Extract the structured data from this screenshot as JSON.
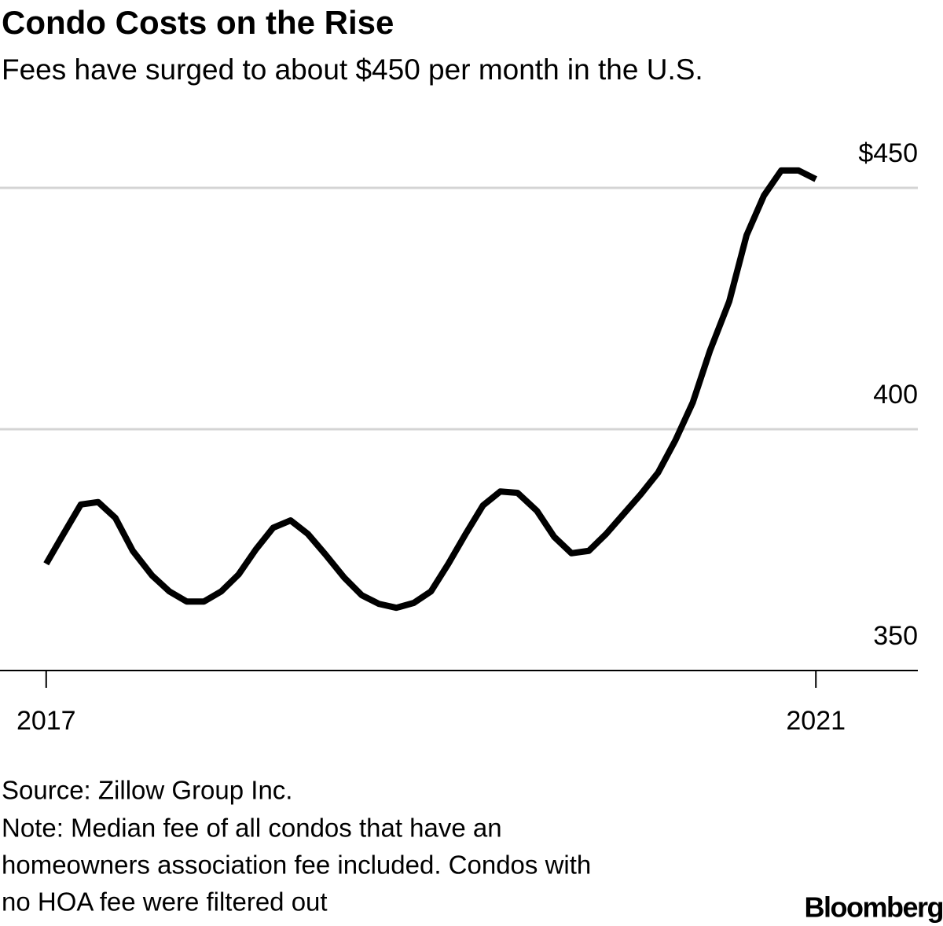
{
  "chart_data": {
    "type": "line",
    "title": "Condo Costs on the Rise",
    "subtitle": "Fees have surged to about $450 per month in the U.S.",
    "x": [
      2017,
      2017.09,
      2017.18,
      2017.27,
      2017.36,
      2017.45,
      2017.55,
      2017.64,
      2017.73,
      2017.82,
      2017.91,
      2018.0,
      2018.09,
      2018.18,
      2018.27,
      2018.36,
      2018.45,
      2018.55,
      2018.64,
      2018.73,
      2018.82,
      2018.91,
      2019.0,
      2019.09,
      2019.18,
      2019.27,
      2019.36,
      2019.45,
      2019.55,
      2019.64,
      2019.73,
      2019.82,
      2019.91,
      2020.0,
      2020.09,
      2020.18,
      2020.27,
      2020.36,
      2020.45,
      2020.55,
      2020.64,
      2020.73,
      2020.82,
      2020.91,
      2021.0
    ],
    "series": [
      {
        "color": "#000000",
        "values": [
          372.1,
          378.3,
          384.4,
          384.9,
          381.6,
          374.8,
          369.7,
          366.4,
          364.3,
          364.3,
          366.4,
          369.9,
          375.1,
          379.6,
          381.1,
          378.3,
          374.1,
          369.2,
          365.6,
          363.8,
          363.0,
          364.0,
          366.4,
          372.1,
          378.3,
          384.2,
          387.1,
          386.8,
          383.1,
          377.7,
          374.3,
          374.8,
          378.3,
          382.4,
          386.5,
          391.0,
          397.7,
          405.5,
          416.3,
          426.5,
          440.2,
          448.4,
          453.6,
          453.6,
          451.8
        ]
      }
    ],
    "xlim": [
      2016.76,
      2021.53
    ],
    "xticks": [
      2017,
      2021
    ],
    "ylim": [
      350,
      460
    ],
    "yticks": [
      {
        "value": 450,
        "label": "$450"
      },
      400,
      350
    ],
    "grid": true,
    "source": "Source: Zillow Group Inc.",
    "note": [
      "Note: Median fee of all condos that have an",
      "homeowners association fee included. Condos with",
      "no HOA fee were filtered out"
    ],
    "brand": "Bloomberg"
  }
}
